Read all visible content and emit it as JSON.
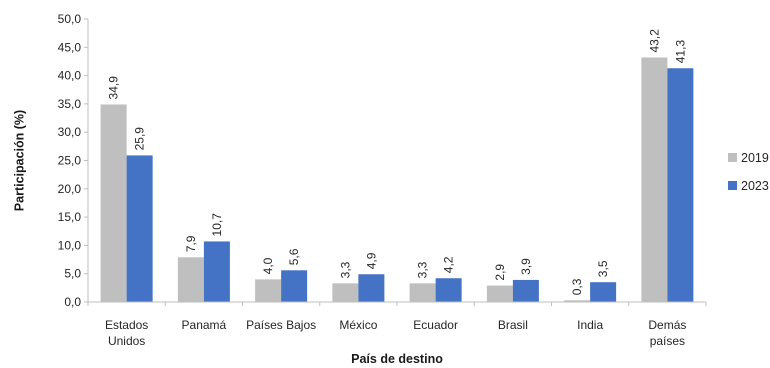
{
  "chart_data": {
    "type": "bar",
    "title": "",
    "xlabel": "País de destino",
    "ylabel": "Participación (%)",
    "ylim": [
      0,
      50
    ],
    "y_ticks": [
      "0,0",
      "5,0",
      "10,0",
      "15,0",
      "20,0",
      "25,0",
      "30,0",
      "35,0",
      "40,0",
      "45,0",
      "50,0"
    ],
    "categories": [
      [
        "Estados",
        "Unidos"
      ],
      [
        "Panamá"
      ],
      [
        "Países Bajos"
      ],
      [
        "México"
      ],
      [
        "Ecuador"
      ],
      [
        "Brasil"
      ],
      [
        "India"
      ],
      [
        "Demás",
        "países"
      ]
    ],
    "series": [
      {
        "name": "2019",
        "color": "#bfbfbf",
        "values": [
          34.9,
          7.9,
          4.0,
          3.3,
          3.3,
          2.9,
          0.3,
          43.2
        ],
        "labels": [
          "34,9",
          "7,9",
          "4,0",
          "3,3",
          "3,3",
          "2,9",
          "0,3",
          "43,2"
        ]
      },
      {
        "name": "2023",
        "color": "#4472c4",
        "values": [
          25.9,
          10.7,
          5.6,
          4.9,
          4.2,
          3.9,
          3.5,
          41.3
        ],
        "labels": [
          "25,9",
          "10,7",
          "5,6",
          "4,9",
          "4,2",
          "3,9",
          "3,5",
          "41,3"
        ]
      }
    ],
    "legend_position": "right",
    "grid": false,
    "data_labels_rotated": true
  }
}
